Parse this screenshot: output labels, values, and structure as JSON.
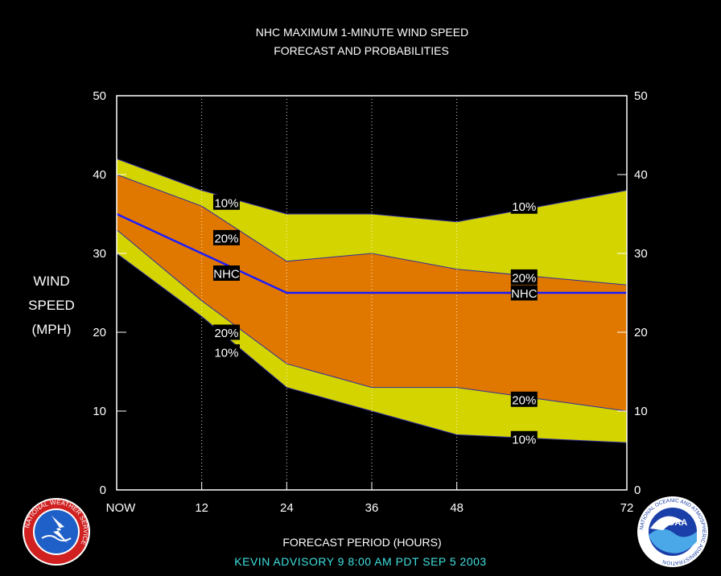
{
  "chart_data": {
    "type": "area",
    "title": "NHC MAXIMUM 1-MINUTE WIND SPEED",
    "subtitle": "FORECAST AND PROBABILITIES",
    "xlabel": "FORECAST PERIOD (HOURS)",
    "ylabel_lines": [
      "WIND",
      "SPEED",
      "(MPH)"
    ],
    "x_ticks": [
      {
        "label": "NOW",
        "value": 0
      },
      {
        "label": "12",
        "value": 12
      },
      {
        "label": "24",
        "value": 24
      },
      {
        "label": "36",
        "value": 36
      },
      {
        "label": "48",
        "value": 48
      },
      {
        "label": "72",
        "value": 72
      }
    ],
    "y_ticks": [
      "0",
      "10",
      "20",
      "30",
      "40",
      "50"
    ],
    "xlim": [
      0,
      72
    ],
    "ylim": [
      0,
      50
    ],
    "x": [
      0,
      12,
      24,
      36,
      48,
      72
    ],
    "bands": {
      "upper10": [
        42,
        38,
        35,
        35,
        34,
        38
      ],
      "upper20": [
        40,
        36,
        29,
        30,
        28,
        26
      ],
      "nhc": [
        35,
        30,
        25,
        25,
        25,
        25
      ],
      "lower20": [
        33,
        24,
        16,
        13,
        13,
        10
      ],
      "lower10": [
        30,
        22,
        13,
        10,
        7,
        6
      ]
    },
    "colors": {
      "outer_band": "#d4d400",
      "inner_band": "#e07800",
      "nhc_line": "#1c1cff",
      "edge_line": "#3030a0",
      "axes": "#ffffff",
      "grid": "#ffffff"
    },
    "labels": [
      {
        "text": "10%",
        "x": 15.5,
        "y": 36.5
      },
      {
        "text": "20%",
        "x": 15.5,
        "y": 32.0
      },
      {
        "text": "NHC",
        "x": 15.5,
        "y": 27.5
      },
      {
        "text": "20%",
        "x": 15.5,
        "y": 20.0
      },
      {
        "text": "10%",
        "x": 15.5,
        "y": 17.5
      },
      {
        "text": "10%",
        "x": 57.5,
        "y": 36.0
      },
      {
        "text": "20%",
        "x": 57.5,
        "y": 27.0
      },
      {
        "text": "NHC",
        "x": 57.5,
        "y": 25.0
      },
      {
        "text": "20%",
        "x": 57.5,
        "y": 11.5
      },
      {
        "text": "10%",
        "x": 57.5,
        "y": 6.5
      }
    ],
    "grid": true,
    "legend": "none"
  },
  "footer": "KEVIN   ADVISORY  9  8:00  AM  PDT  SEP  5  2003",
  "logos": {
    "left": "nws-logo",
    "left_text": "NATIONAL WEATHER SERVICE",
    "right": "noaa-logo",
    "right_text": "NATIONAL OCEANIC AND ATMOSPHERIC ADMINISTRATION",
    "right_center": "NOAA"
  }
}
